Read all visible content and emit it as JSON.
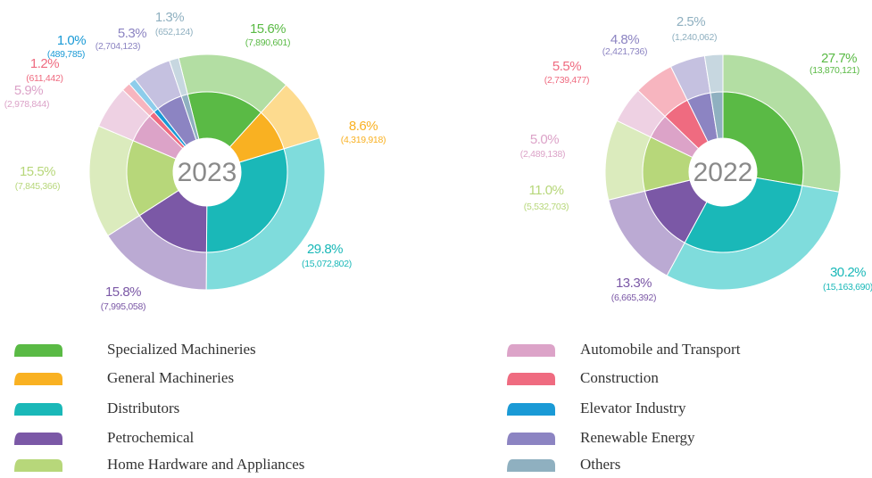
{
  "chart_data": {
    "type": "donut",
    "categories": [
      "Specialized Machineries",
      "General Machineries",
      "Distributors",
      "Petrochemical",
      "Home Hardware and Appliances",
      "Automobile and Transport",
      "Construction",
      "Elevator Industry",
      "Renewable Energy",
      "Others"
    ],
    "colors": [
      "#5aba45",
      "#f9b122",
      "#1ab8b8",
      "#7b58a6",
      "#b7d77a",
      "#dca3c8",
      "#ef6b80",
      "#1a9ad6",
      "#8c84c2",
      "#8fb0c0"
    ],
    "light_colors": [
      "#b3dea3",
      "#fddb8f",
      "#7fdcdc",
      "#bbaad3",
      "#dbebbd",
      "#eed1e3",
      "#f7b5bf",
      "#8dcdeb",
      "#c5c1e0",
      "#c7d7e0"
    ],
    "charts": [
      {
        "center_label": "2023",
        "values": [
          15.6,
          8.6,
          29.8,
          15.8,
          15.5,
          5.9,
          1.2,
          1.0,
          5.3,
          1.3
        ],
        "value_labels": [
          "15.6%",
          "8.6%",
          "29.8%",
          "15.8%",
          "15.5%",
          "5.9%",
          "1.2%",
          "1.0%",
          "5.3%",
          "1.3%"
        ],
        "counts": [
          7890601,
          4319918,
          15072802,
          7995058,
          7845366,
          2978844,
          611442,
          489785,
          2704123,
          652124
        ],
        "count_labels": [
          "(7,890,601)",
          "(4,319,918)",
          "(15,072,802)",
          "(7,995,058)",
          "(7,845,366)",
          "(2,978,844)",
          "(611,442)",
          "(489,785)",
          "(2,704,123)",
          "(652,124)"
        ]
      },
      {
        "center_label": "2022",
        "values": [
          27.7,
          null,
          30.2,
          13.3,
          11.0,
          5.0,
          5.5,
          null,
          4.8,
          2.5
        ],
        "value_labels": [
          "27.7%",
          null,
          "30.2%",
          "13.3%",
          "11.0%",
          "5.0%",
          "5.5%",
          null,
          "4.8%",
          "2.5%"
        ],
        "counts": [
          13870121,
          null,
          15163690,
          6665392,
          5532703,
          2489138,
          2739477,
          null,
          2421736,
          1240062
        ],
        "count_labels": [
          "(13,870,121)",
          null,
          "(15,163,690)",
          "(6,665,392)",
          "(5,532,703)",
          "(2,489,138)",
          "(2,739,477)",
          null,
          "(2,421,736)",
          "(1,240,062)"
        ]
      }
    ]
  }
}
